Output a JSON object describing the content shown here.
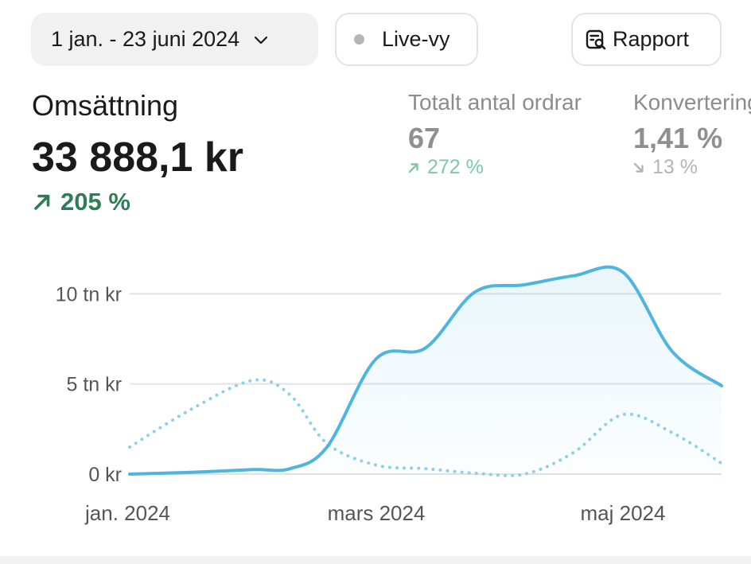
{
  "toolbar": {
    "date_range": "1 jan. - 23 juni 2024",
    "live_label": "Live-vy",
    "report_label": "Rapport"
  },
  "metrics": {
    "revenue": {
      "label": "Omsättning",
      "value": "33 888,1 kr",
      "delta": "205 %",
      "trend": "up"
    },
    "orders": {
      "label": "Totalt antal ordrar",
      "value": "67",
      "delta": "272 %",
      "trend": "up"
    },
    "conversion": {
      "label": "Konvertering",
      "value": "1,41 %",
      "delta": "13 %",
      "trend": "down"
    }
  },
  "colors": {
    "primary_line": "#4db5e0",
    "comparison_line": "#8dd0ea",
    "positive": "#2e7d57",
    "positive_muted": "#7ec9a5",
    "negative_muted": "#b5b5b5"
  },
  "chart_data": {
    "type": "area",
    "x": [
      0,
      0.5,
      1,
      1.3,
      1.6,
      2,
      2.4,
      2.8,
      3.2,
      3.6,
      4,
      4.4,
      4.8
    ],
    "x_tick_values": [
      0,
      2,
      4
    ],
    "xticks": [
      "jan. 2024",
      "mars 2024",
      "maj 2024"
    ],
    "yticks": [
      "0 kr",
      "5 tn kr",
      "10 tn kr"
    ],
    "ytick_values": [
      0,
      5000,
      10000
    ],
    "ylim": [
      0,
      12000
    ],
    "grid": true,
    "series": [
      {
        "style": "solid-area",
        "values": [
          0,
          100,
          250,
          300,
          1500,
          6400,
          7000,
          10100,
          10500,
          11000,
          11200,
          6800,
          4900
        ]
      },
      {
        "style": "dotted",
        "values": [
          1500,
          3600,
          5200,
          4400,
          1700,
          500,
          300,
          50,
          0,
          1200,
          3300,
          2300,
          600
        ]
      }
    ]
  }
}
